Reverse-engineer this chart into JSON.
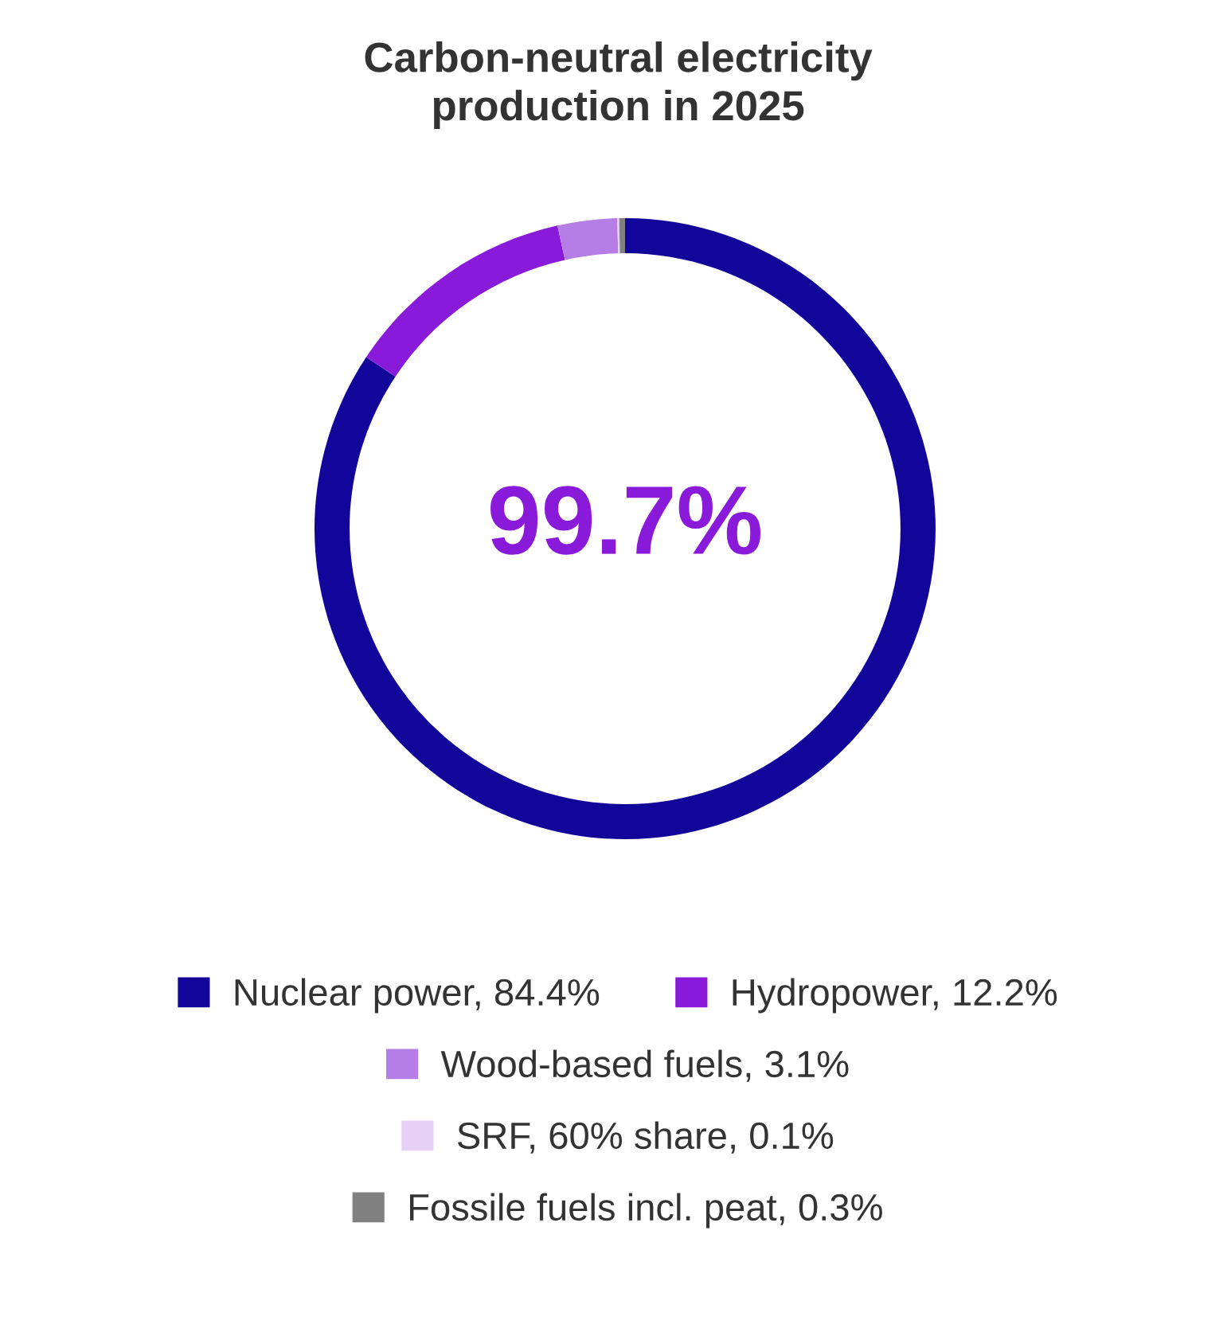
{
  "chart_data": {
    "type": "donut",
    "title": "Carbon-neutral electricity\nproduction in 2025",
    "categories": [
      "Nuclear power, 84.4%",
      "Hydropower, 12.2%",
      "Wood-based fuels, 3.1%",
      "SRF, 60% share, 0.1%",
      "Fossile fuels incl. peat, 0.3%"
    ],
    "values": [
      84.4,
      12.2,
      3.1,
      0.1,
      0.3
    ],
    "colors": [
      "#12069a",
      "#8a1ad9",
      "#b57de6",
      "#e6d0f5",
      "#808080"
    ],
    "annotations": [
      "99.7%"
    ],
    "legend": "bottom"
  }
}
